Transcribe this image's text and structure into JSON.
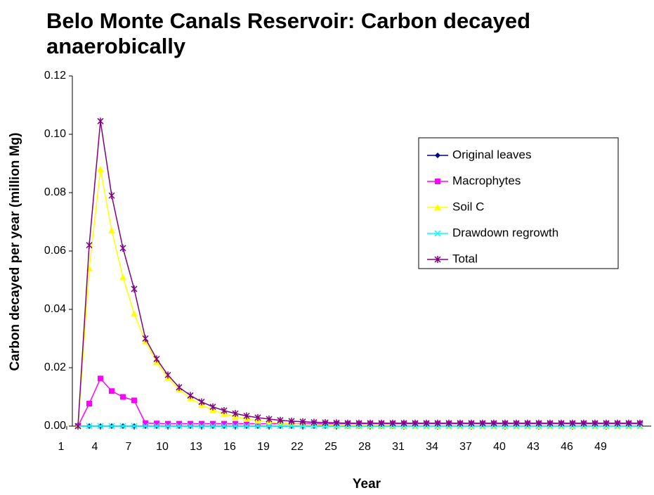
{
  "chart_data": {
    "type": "line",
    "title": "Belo Monte Canals Reservoir: Carbon decayed anaerobically",
    "xlabel": "Year",
    "ylabel": "Carbon decayed per year (million Mg)",
    "x": [
      2,
      3,
      4,
      5,
      6,
      7,
      8,
      9,
      10,
      11,
      12,
      13,
      14,
      15,
      16,
      17,
      18,
      19,
      20,
      21,
      22,
      23,
      24,
      25,
      26,
      27,
      28,
      29,
      30,
      31,
      32,
      33,
      34,
      35,
      36,
      37,
      38,
      39,
      40,
      41,
      42,
      43,
      44,
      45,
      46,
      47,
      48,
      49,
      50,
      51,
      52
    ],
    "xlim": [
      1.5,
      52.5
    ],
    "xticks": [
      1,
      4,
      7,
      10,
      13,
      16,
      19,
      22,
      25,
      28,
      31,
      34,
      37,
      40,
      43,
      46,
      49
    ],
    "ylim": [
      0,
      0.12
    ],
    "yticks": [
      {
        "value": 0,
        "label": "0.00"
      },
      {
        "value": 0.02,
        "label": "0.02"
      },
      {
        "value": 0.04,
        "label": "0.04"
      },
      {
        "value": 0.06,
        "label": "0.06"
      },
      {
        "value": 0.08,
        "label": "0.08"
      },
      {
        "value": 0.1,
        "label": "0.10"
      },
      {
        "value": 0.12,
        "label": "0.12"
      }
    ],
    "legend": "right",
    "series": [
      {
        "name": "Original leaves",
        "color": "#000080",
        "marker": "diamond",
        "values": [
          0,
          0,
          0,
          0,
          0,
          0,
          0,
          0,
          0,
          0,
          0,
          0,
          0,
          0,
          0,
          0,
          0,
          0,
          0,
          0,
          0,
          0,
          0,
          0,
          0,
          0,
          0,
          0,
          0,
          0,
          0,
          0,
          0,
          0,
          0,
          0,
          0,
          0,
          0,
          0,
          0,
          0,
          0,
          0,
          0,
          0,
          0,
          0,
          0,
          0,
          0
        ]
      },
      {
        "name": "Macrophytes",
        "color": "#ff00ff",
        "marker": "square",
        "values": [
          0,
          0.0077,
          0.0163,
          0.012,
          0.01,
          0.0088,
          0.001,
          0.0009,
          0.0008,
          0.0008,
          0.0008,
          0.0008,
          0.0008,
          0.0008,
          0.0008,
          0.0008,
          0.0008,
          0.0008,
          0.0008,
          0.0008,
          0.0008,
          0.0008,
          0.0008,
          0.0008,
          0.0008,
          0.0008,
          0.0008,
          0.0008,
          0.0008,
          0.0008,
          0.0008,
          0.0008,
          0.0008,
          0.0008,
          0.0008,
          0.0008,
          0.0008,
          0.0008,
          0.0008,
          0.0008,
          0.0008,
          0.0008,
          0.0008,
          0.0008,
          0.0008,
          0.0008,
          0.0008,
          0.0008,
          0.0008,
          0.0008,
          0.0008
        ]
      },
      {
        "name": "Soil C",
        "color": "#ffff00",
        "marker": "triangle",
        "values": [
          0,
          0.054,
          0.088,
          0.067,
          0.051,
          0.0385,
          0.029,
          0.022,
          0.0165,
          0.0125,
          0.0095,
          0.0072,
          0.0055,
          0.0042,
          0.0032,
          0.0024,
          0.0018,
          0.0014,
          0.001,
          0.0008,
          0.0006,
          0.0005,
          0.0004,
          0.0003,
          0.0002,
          0.0002,
          0.0002,
          0.0002,
          0.0002,
          0,
          0,
          0,
          0,
          0,
          0,
          0,
          0,
          0,
          0,
          0,
          0,
          0,
          0,
          0,
          0,
          0,
          0,
          0,
          0,
          0,
          0
        ]
      },
      {
        "name": "Drawdown regrowth",
        "color": "#00ffff",
        "marker": "x",
        "values": [
          0,
          0,
          0,
          0,
          0,
          0,
          0,
          0,
          0,
          0,
          0,
          0,
          0,
          0,
          0,
          0,
          0,
          0,
          0,
          0,
          0,
          0,
          0,
          0,
          0,
          0,
          0,
          0,
          0,
          0,
          0,
          0,
          0,
          0,
          0,
          0,
          0,
          0,
          0,
          0,
          0,
          0,
          0,
          0,
          0,
          0,
          0,
          0,
          0,
          0,
          0
        ]
      },
      {
        "name": "Total",
        "color": "#800080",
        "marker": "star",
        "values": [
          0,
          0.062,
          0.1045,
          0.079,
          0.061,
          0.047,
          0.03,
          0.023,
          0.0175,
          0.0133,
          0.0105,
          0.0083,
          0.0066,
          0.0053,
          0.0043,
          0.0035,
          0.0029,
          0.0024,
          0.002,
          0.0017,
          0.0015,
          0.0013,
          0.0012,
          0.0011,
          0.001,
          0.001,
          0.001,
          0.001,
          0.001,
          0.001,
          0.001,
          0.001,
          0.001,
          0.001,
          0.001,
          0.001,
          0.001,
          0.001,
          0.001,
          0.001,
          0.001,
          0.001,
          0.001,
          0.001,
          0.001,
          0.001,
          0.001,
          0.001,
          0.001,
          0.001,
          0.001
        ]
      }
    ]
  }
}
